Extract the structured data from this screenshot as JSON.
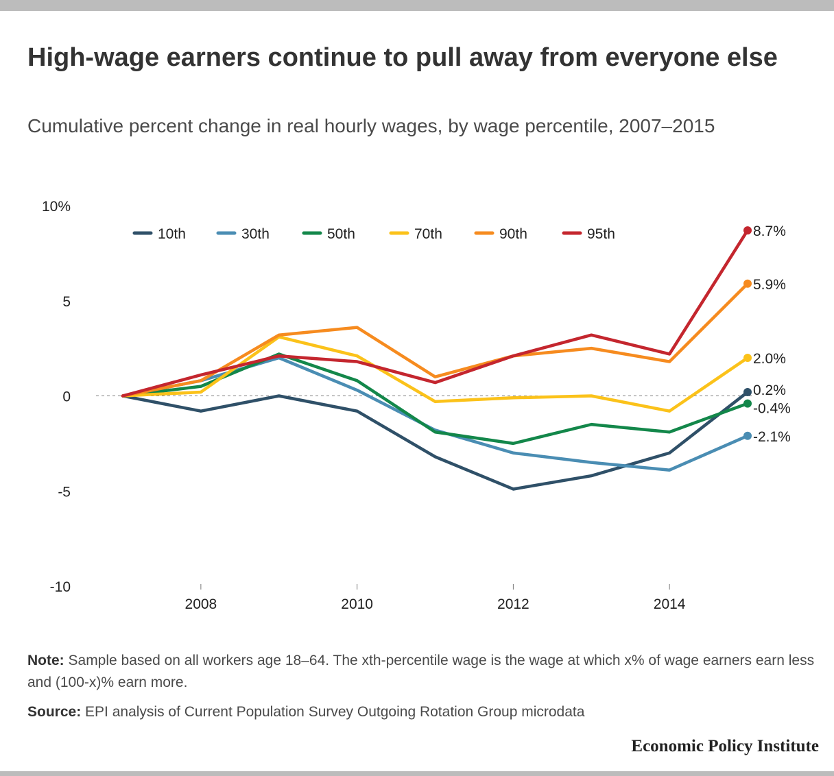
{
  "title": "High-wage earners continue to pull away from everyone else",
  "subtitle": "Cumulative percent change in real hourly wages, by wage percentile, 2007–2015",
  "note": {
    "label": "Note:",
    "text": " Sample based on all workers age 18–64. The xth-percentile wage is the wage at which x% of wage earners earn less and (100-x)% earn more."
  },
  "source": {
    "label": "Source:",
    "text": " EPI analysis of Current Population Survey Outgoing Rotation Group microdata"
  },
  "brand": "Economic Policy Institute",
  "chart_data": {
    "type": "line",
    "x": [
      2007,
      2008,
      2009,
      2010,
      2011,
      2012,
      2013,
      2014,
      2015
    ],
    "xticks": [
      2008,
      2010,
      2012,
      2014
    ],
    "ylim": [
      -10,
      10
    ],
    "yticks": [
      {
        "value": 10,
        "label": "10%"
      },
      {
        "value": 5,
        "label": "5"
      },
      {
        "value": 0,
        "label": "0"
      },
      {
        "value": -5,
        "label": "-5"
      },
      {
        "value": -10,
        "label": "-10"
      }
    ],
    "zero_line": "dashed",
    "legend_position": "top",
    "series": [
      {
        "name": "10th",
        "color": "#2f5068",
        "values": [
          0,
          -0.8,
          0,
          -0.8,
          -3.2,
          -4.9,
          -4.2,
          -3.0,
          0.2
        ],
        "end_label": "0.2%"
      },
      {
        "name": "30th",
        "color": "#4a8db3",
        "values": [
          0,
          0.8,
          2.0,
          0.3,
          -1.8,
          -3.0,
          -3.5,
          -3.9,
          -2.1
        ],
        "end_label": "-2.1%"
      },
      {
        "name": "50th",
        "color": "#13874a",
        "values": [
          0,
          0.5,
          2.2,
          0.8,
          -1.9,
          -2.5,
          -1.5,
          -1.9,
          -0.4
        ],
        "end_label": "-0.4%"
      },
      {
        "name": "70th",
        "color": "#fbc21a",
        "values": [
          0,
          0.2,
          3.1,
          2.1,
          -0.3,
          -0.1,
          0,
          -0.8,
          2.0
        ],
        "end_label": "2.0%"
      },
      {
        "name": "90th",
        "color": "#f68b1f",
        "values": [
          0,
          0.8,
          3.2,
          3.6,
          1.0,
          2.1,
          2.5,
          1.8,
          5.9
        ],
        "end_label": "5.9%"
      },
      {
        "name": "95th",
        "color": "#c4262e",
        "values": [
          0,
          1.1,
          2.1,
          1.8,
          0.7,
          2.1,
          3.2,
          2.2,
          8.7
        ],
        "end_label": "8.7%"
      }
    ]
  }
}
